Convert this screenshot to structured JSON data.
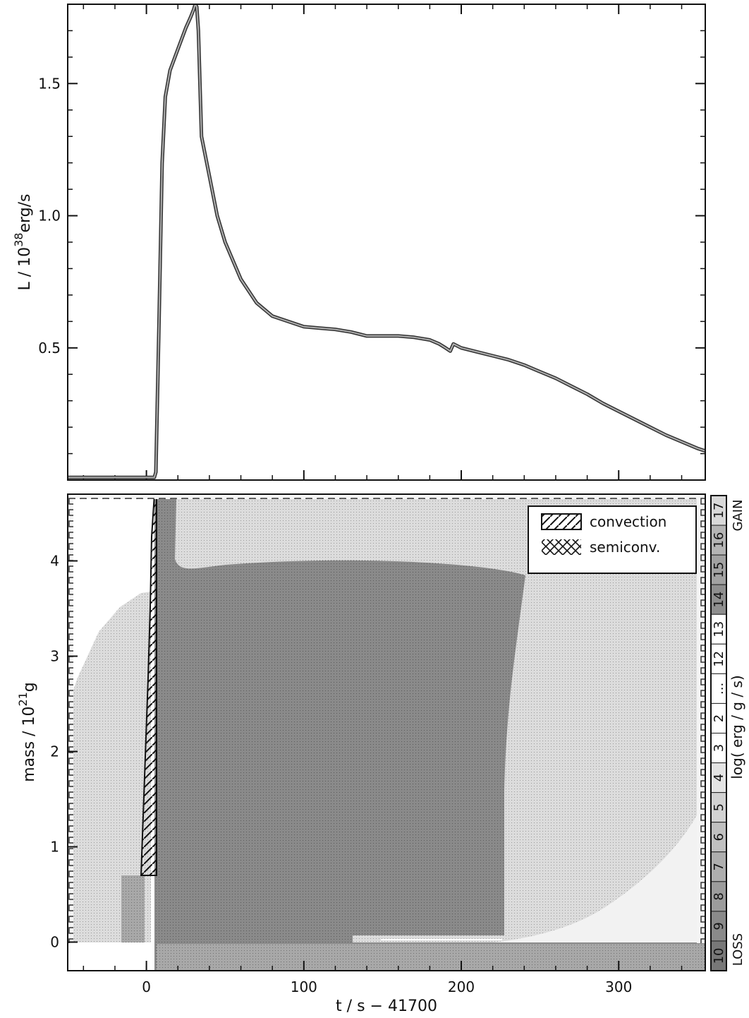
{
  "chart_data": [
    {
      "type": "line",
      "ylabel": "L / 10³⁸erg/s",
      "ylabel_parts": {
        "prefix": "L / 10",
        "exponent": "38",
        "unit": "erg/s"
      },
      "xlim": [
        -50,
        355
      ],
      "ylim": [
        0,
        1.8
      ],
      "y_ticks": [
        0.5,
        1.0,
        1.5
      ],
      "y_tick_labels": [
        "0.5",
        "1.0",
        "1.5"
      ],
      "x_ticks": [
        0,
        100,
        200,
        300
      ],
      "series": [
        {
          "x": [
            -50,
            -35,
            -20,
            -10,
            0,
            5,
            6,
            8,
            10,
            12,
            15,
            20,
            25,
            28,
            30,
            31,
            32,
            33,
            35,
            40,
            45,
            50,
            60,
            70,
            80,
            90,
            100,
            110,
            120,
            130,
            140,
            150,
            160,
            170,
            180,
            186,
            190,
            193,
            195,
            200,
            210,
            220,
            230,
            240,
            250,
            260,
            270,
            280,
            290,
            300,
            310,
            320,
            330,
            340,
            350,
            355
          ],
          "y": [
            0.01,
            0.01,
            0.01,
            0.01,
            0.01,
            0.01,
            0.03,
            0.6,
            1.2,
            1.45,
            1.55,
            1.63,
            1.71,
            1.75,
            1.78,
            1.8,
            1.79,
            1.7,
            1.3,
            1.15,
            1.0,
            0.9,
            0.76,
            0.67,
            0.62,
            0.6,
            0.58,
            0.575,
            0.57,
            0.56,
            0.545,
            0.545,
            0.545,
            0.54,
            0.53,
            0.515,
            0.5,
            0.488,
            0.515,
            0.5,
            0.485,
            0.47,
            0.455,
            0.435,
            0.41,
            0.385,
            0.355,
            0.325,
            0.29,
            0.26,
            0.23,
            0.2,
            0.17,
            0.145,
            0.12,
            0.11
          ]
        }
      ]
    },
    {
      "type": "heatmap",
      "xlabel": "t / s  −  41700",
      "ylabel": "mass / 10²¹g",
      "ylabel_parts": {
        "prefix": "mass / 10",
        "exponent": "21",
        "unit": "g"
      },
      "xlim": [
        -50,
        355
      ],
      "ylim": [
        -0.3,
        4.7
      ],
      "x_ticks": [
        0,
        100,
        200,
        300
      ],
      "x_tick_labels": [
        "0",
        "100",
        "200",
        "300"
      ],
      "y_ticks": [
        0,
        1,
        2,
        3,
        4
      ],
      "y_tick_labels": [
        "0",
        "1",
        "2",
        "3",
        "4"
      ],
      "legend": {
        "position": "top-right",
        "entries": [
          {
            "label": "convection",
            "pattern": "diagonal-hatch"
          },
          {
            "label": "semiconv.",
            "pattern": "cross-hatch"
          }
        ]
      },
      "colorbar": {
        "title": "log( erg / g / s)",
        "gain_label": "GAIN",
        "loss_label": "LOSS",
        "segments": [
          {
            "label": "17",
            "shade": "#d9d9d9"
          },
          {
            "label": "16",
            "shade": "#b4b4b4"
          },
          {
            "label": "15",
            "shade": "#a2a2a2"
          },
          {
            "label": "14",
            "shade": "#8f8f8f"
          },
          {
            "label": "13",
            "shade": "#ffffff"
          },
          {
            "label": "12",
            "shade": "#ffffff"
          },
          {
            "label": "...",
            "shade": "#ffffff"
          },
          {
            "label": "2",
            "shade": "#ffffff"
          },
          {
            "label": "3",
            "shade": "#ffffff"
          },
          {
            "label": "4",
            "shade": "#e4e4e4"
          },
          {
            "label": "5",
            "shade": "#d2d2d2"
          },
          {
            "label": "6",
            "shade": "#c0c0c0"
          },
          {
            "label": "7",
            "shade": "#aeaeae"
          },
          {
            "label": "8",
            "shade": "#9c9c9c"
          },
          {
            "label": "9",
            "shade": "#8a8a8a"
          },
          {
            "label": "10",
            "shade": "#787878"
          }
        ]
      }
    }
  ]
}
